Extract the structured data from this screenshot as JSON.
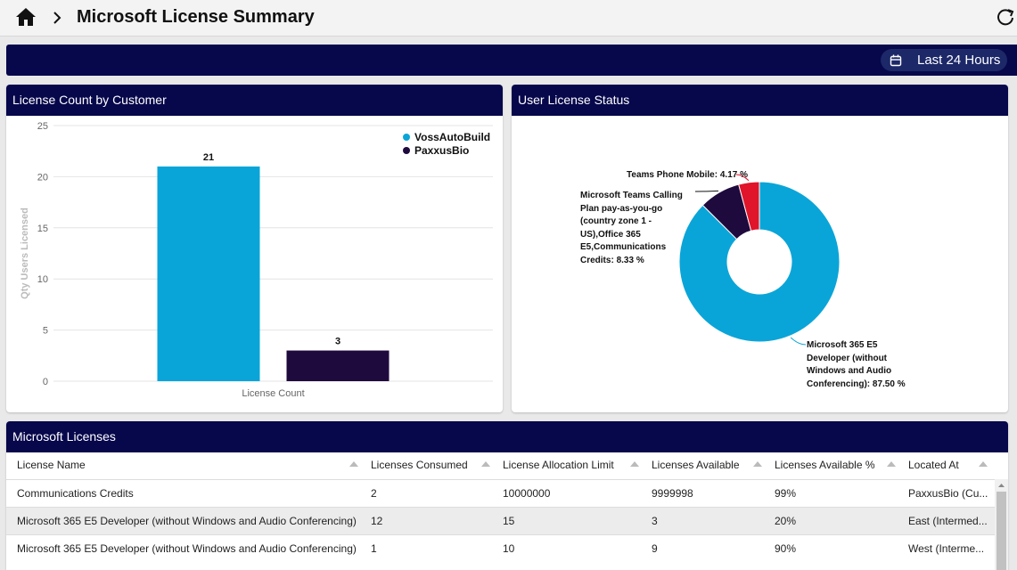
{
  "header": {
    "title": "Microsoft License Summary"
  },
  "toolbar": {
    "time_range": "Last 24 Hours"
  },
  "chart_data": [
    {
      "type": "bar",
      "title": "License Count by Customer",
      "y_label": "Qty Users Licensed",
      "categories": [
        "License Count"
      ],
      "series": [
        {
          "name": "VossAutoBuild",
          "color": "#0aa5d8",
          "values": [
            21
          ]
        },
        {
          "name": "PaxxusBio",
          "color": "#1f0a3e",
          "values": [
            3
          ]
        }
      ],
      "ylim": [
        0,
        25
      ],
      "yticks": [
        0,
        5,
        10,
        15,
        20,
        25
      ],
      "grid": true,
      "legend": "top-right"
    },
    {
      "type": "pie",
      "title": "User License Status",
      "donut": true,
      "categories": [
        "Microsoft 365 E5 Developer (without Windows and Audio Conferencing):",
        "Microsoft Teams Calling Plan pay-as-you-go (country zone 1 - US),Office 365 E5,Communications Credits:",
        "Teams Phone Mobile:"
      ],
      "values": [
        87.5,
        8.33,
        4.17
      ],
      "value_labels": [
        "87.50 %",
        "8.33 %",
        "4.17 %"
      ],
      "colors": [
        "#0aa5d8",
        "#1f0a3e",
        "#e0142a"
      ]
    }
  ],
  "table": {
    "title": "Microsoft Licenses",
    "columns": [
      "License Name",
      "Licenses Consumed",
      "License Allocation Limit",
      "Licenses Available",
      "Licenses Available %",
      "Located At"
    ],
    "rows": [
      [
        "Communications Credits",
        2,
        10000000,
        9999998,
        "99%",
        "PaxxusBio (Cu..."
      ],
      [
        "Microsoft 365 E5 Developer (without Windows and Audio Conferencing)",
        12,
        15,
        3,
        "20%",
        "East (Intermed..."
      ],
      [
        "Microsoft 365 E5 Developer (without Windows and Audio Conferencing)",
        1,
        10,
        9,
        "90%",
        "West (Interme..."
      ]
    ]
  }
}
